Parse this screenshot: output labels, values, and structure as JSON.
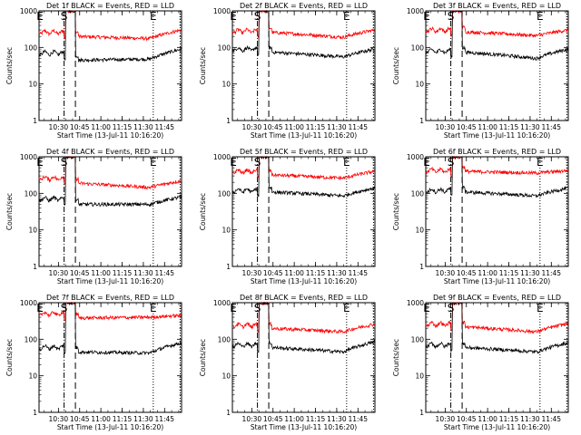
{
  "chart_data": {
    "type": "line",
    "layout": "3x3 grid",
    "x_start_label": "Start Time (13-Jul-11 10:16:20)",
    "xlabel": "Start Time (13-Jul-11 10:16:20)",
    "ylabel": "Counts/sec",
    "yscale": "log",
    "ylim": [
      1,
      1000
    ],
    "y_ticks": [
      "1",
      "10",
      "100",
      "1000"
    ],
    "x_ticks": [
      "10:30",
      "10:45",
      "11:00",
      "11:15",
      "11:30",
      "11:45"
    ],
    "x_tick_minutes": [
      30,
      45,
      60,
      75,
      90,
      105
    ],
    "xlim_minutes": [
      16.3,
      117
    ],
    "series_colors": {
      "events": "#000000",
      "lld": "#ff0000"
    },
    "panels": [
      {
        "title": "Det 1f BLACK = Events, RED = LLD",
        "markers": [
          {
            "label": "E",
            "x": 17
          },
          {
            "label": "S",
            "x": 34
          },
          {
            "label": "E",
            "x": 97
          }
        ],
        "vlines": [
          {
            "x": 34,
            "style": "dashdot"
          },
          {
            "x": 42,
            "style": "dashed"
          },
          {
            "x": 97,
            "style": "dotted"
          },
          {
            "x": 116,
            "style": "dotted"
          }
        ],
        "lld": {
          "before": 260,
          "start": 200,
          "mid": 175,
          "end": 300
        },
        "events": {
          "before": 70,
          "start": 45,
          "mid": 48,
          "end": 90
        }
      },
      {
        "title": "Det 2f BLACK = Events, RED = LLD",
        "markers": [
          {
            "label": "E",
            "x": 17
          },
          {
            "label": "S",
            "x": 34
          },
          {
            "label": "E",
            "x": 97
          }
        ],
        "vlines": [
          {
            "x": 34,
            "style": "dashdot"
          },
          {
            "x": 42,
            "style": "dashed"
          },
          {
            "x": 97,
            "style": "dotted"
          },
          {
            "x": 116,
            "style": "dotted"
          }
        ],
        "lld": {
          "before": 280,
          "start": 260,
          "mid": 190,
          "end": 300
        },
        "events": {
          "before": 90,
          "start": 75,
          "mid": 55,
          "end": 90
        }
      },
      {
        "title": "Det 3f BLACK = Events, RED = LLD",
        "markers": [
          {
            "label": "E",
            "x": 17
          },
          {
            "label": "S",
            "x": 34
          },
          {
            "label": "E",
            "x": 97
          }
        ],
        "vlines": [
          {
            "x": 34,
            "style": "dashdot"
          },
          {
            "x": 42,
            "style": "dashed"
          },
          {
            "x": 97,
            "style": "dotted"
          },
          {
            "x": 116,
            "style": "dotted"
          }
        ],
        "lld": {
          "before": 300,
          "start": 270,
          "mid": 210,
          "end": 300
        },
        "events": {
          "before": 80,
          "start": 75,
          "mid": 50,
          "end": 90
        }
      },
      {
        "title": "Det 4f BLACK = Events, RED = LLD",
        "markers": [
          {
            "label": "E",
            "x": 17
          },
          {
            "label": "S",
            "x": 34
          },
          {
            "label": "E",
            "x": 97
          }
        ],
        "vlines": [
          {
            "x": 34,
            "style": "dashdot"
          },
          {
            "x": 42,
            "style": "dashed"
          },
          {
            "x": 97,
            "style": "dotted"
          },
          {
            "x": 116,
            "style": "dotted"
          }
        ],
        "lld": {
          "before": 260,
          "start": 190,
          "mid": 145,
          "end": 220
        },
        "events": {
          "before": 70,
          "start": 50,
          "mid": 50,
          "end": 80
        }
      },
      {
        "title": "Det 5f BLACK = Events, RED = LLD",
        "markers": [
          {
            "label": "E",
            "x": 17
          },
          {
            "label": "S",
            "x": 34
          },
          {
            "label": "E",
            "x": 97
          }
        ],
        "vlines": [
          {
            "x": 34,
            "style": "dashdot"
          },
          {
            "x": 42,
            "style": "dashed"
          },
          {
            "x": 97,
            "style": "dotted"
          },
          {
            "x": 116,
            "style": "dotted"
          }
        ],
        "lld": {
          "before": 400,
          "start": 320,
          "mid": 260,
          "end": 400
        },
        "events": {
          "before": 120,
          "start": 110,
          "mid": 85,
          "end": 140
        }
      },
      {
        "title": "Det 6f BLACK = Events, RED = LLD",
        "markers": [
          {
            "label": "E",
            "x": 17
          },
          {
            "label": "S",
            "x": 34
          },
          {
            "label": "E",
            "x": 97
          }
        ],
        "vlines": [
          {
            "x": 34,
            "style": "dashdot"
          },
          {
            "x": 42,
            "style": "dashed"
          },
          {
            "x": 97,
            "style": "dotted"
          },
          {
            "x": 116,
            "style": "dotted"
          }
        ],
        "lld": {
          "before": 420,
          "start": 400,
          "mid": 360,
          "end": 420
        },
        "events": {
          "before": 120,
          "start": 110,
          "mid": 85,
          "end": 140
        }
      },
      {
        "title": "Det 7f BLACK = Events, RED = LLD",
        "markers": [
          {
            "label": "E",
            "x": 17
          },
          {
            "label": "S",
            "x": 34
          },
          {
            "label": "E",
            "x": 97
          }
        ],
        "vlines": [
          {
            "x": 34,
            "style": "dashdot"
          },
          {
            "x": 42,
            "style": "dashed"
          },
          {
            "x": 97,
            "style": "dotted"
          },
          {
            "x": 116,
            "style": "dotted"
          }
        ],
        "lld": {
          "before": 500,
          "start": 380,
          "mid": 400,
          "end": 450
        },
        "events": {
          "before": 60,
          "start": 45,
          "mid": 42,
          "end": 80
        }
      },
      {
        "title": "Det 8f BLACK = Events, RED = LLD",
        "markers": [
          {
            "label": "E",
            "x": 17
          },
          {
            "label": "S",
            "x": 34
          },
          {
            "label": "E",
            "x": 97
          }
        ],
        "vlines": [
          {
            "x": 34,
            "style": "dashdot"
          },
          {
            "x": 42,
            "style": "dashed"
          },
          {
            "x": 97,
            "style": "dotted"
          },
          {
            "x": 116,
            "style": "dotted"
          }
        ],
        "lld": {
          "before": 240,
          "start": 200,
          "mid": 160,
          "end": 260
        },
        "events": {
          "before": 70,
          "start": 60,
          "mid": 45,
          "end": 85
        }
      },
      {
        "title": "Det 9f BLACK = Events, RED = LLD",
        "markers": [
          {
            "label": "E",
            "x": 17
          },
          {
            "label": "S",
            "x": 34
          },
          {
            "label": "E",
            "x": 97
          }
        ],
        "vlines": [
          {
            "x": 34,
            "style": "dashdot"
          },
          {
            "x": 42,
            "style": "dashed"
          },
          {
            "x": 97,
            "style": "dotted"
          },
          {
            "x": 116,
            "style": "dotted"
          }
        ],
        "lld": {
          "before": 260,
          "start": 220,
          "mid": 160,
          "end": 270
        },
        "events": {
          "before": 70,
          "start": 60,
          "mid": 45,
          "end": 80
        }
      }
    ]
  }
}
